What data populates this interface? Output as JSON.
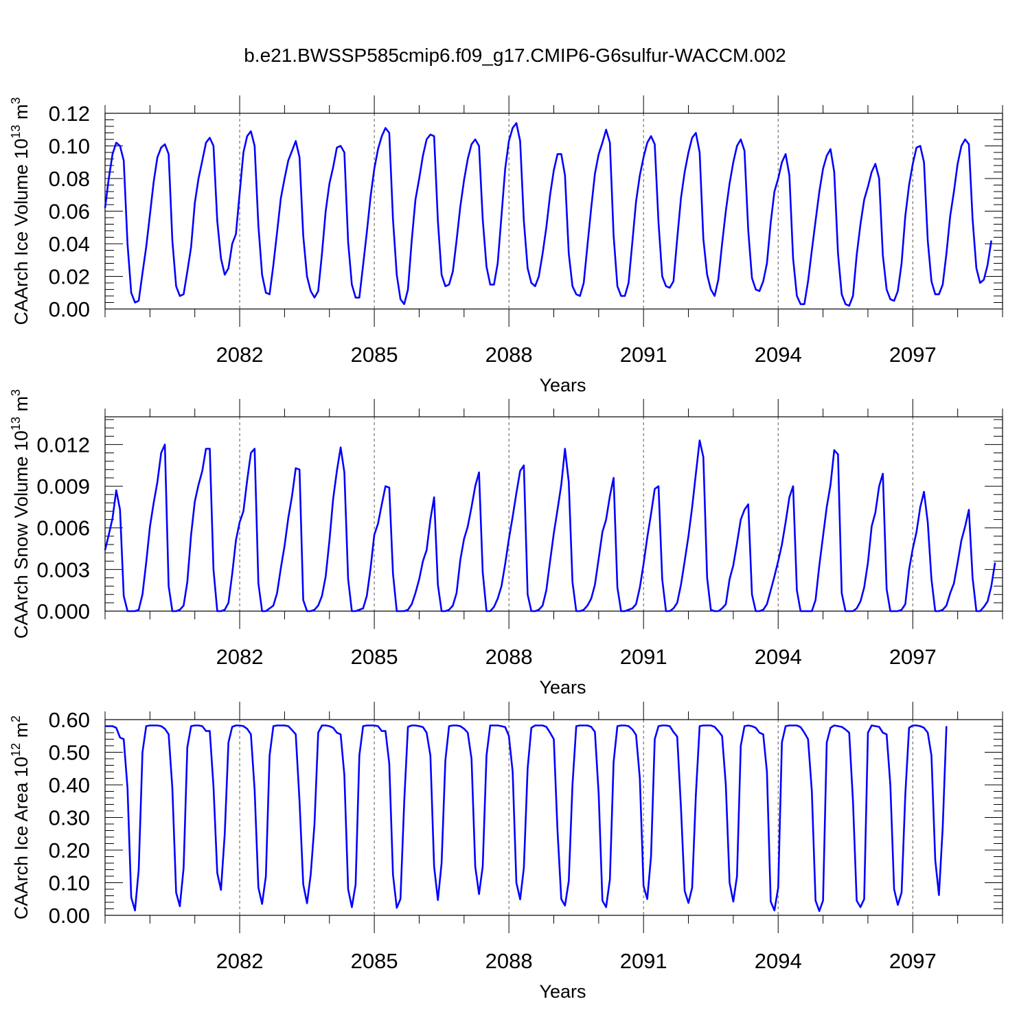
{
  "title": "b.e21.BWSSP585cmip6.f09_g17.CMIP6-G6sulfur-WACCM.002",
  "line_color": "#0000ff",
  "chart_data": [
    {
      "type": "line",
      "ylabel": "CAArch Ice Volume 10",
      "ylabel_exp": "13",
      "ylabel_unit": "m",
      "ylabel_unit_exp": "3",
      "xlabel": "Years",
      "xlim": [
        2079.0,
        2099.0
      ],
      "ylim": [
        0,
        0.12
      ],
      "yticks": [
        "0.00",
        "0.02",
        "0.04",
        "0.06",
        "0.08",
        "0.10",
        "0.12"
      ],
      "xticks": [
        "2082",
        "2085",
        "2088",
        "2091",
        "2094",
        "2097"
      ],
      "x_start": "2079-01",
      "x_step_months": 1,
      "series": [
        {
          "values": [
            0.062,
            0.08,
            0.095,
            0.102,
            0.1,
            0.091,
            0.04,
            0.01,
            0.004,
            0.005,
            0.022,
            0.038,
            0.058,
            0.078,
            0.093,
            0.099,
            0.101,
            0.095,
            0.042,
            0.014,
            0.008,
            0.009,
            0.023,
            0.038,
            0.065,
            0.08,
            0.091,
            0.102,
            0.105,
            0.1,
            0.054,
            0.031,
            0.021,
            0.025,
            0.04,
            0.046,
            0.071,
            0.096,
            0.106,
            0.109,
            0.1,
            0.051,
            0.021,
            0.01,
            0.009,
            0.027,
            0.047,
            0.068,
            0.08,
            0.091,
            0.097,
            0.103,
            0.093,
            0.045,
            0.02,
            0.011,
            0.007,
            0.011,
            0.034,
            0.06,
            0.077,
            0.087,
            0.099,
            0.1,
            0.096,
            0.041,
            0.015,
            0.007,
            0.007,
            0.027,
            0.047,
            0.069,
            0.086,
            0.098,
            0.106,
            0.111,
            0.108,
            0.055,
            0.021,
            0.006,
            0.003,
            0.012,
            0.042,
            0.067,
            0.08,
            0.094,
            0.104,
            0.107,
            0.106,
            0.054,
            0.021,
            0.014,
            0.015,
            0.023,
            0.042,
            0.063,
            0.079,
            0.092,
            0.101,
            0.104,
            0.1,
            0.055,
            0.026,
            0.015,
            0.015,
            0.028,
            0.057,
            0.086,
            0.103,
            0.111,
            0.114,
            0.103,
            0.054,
            0.025,
            0.016,
            0.014,
            0.02,
            0.034,
            0.05,
            0.07,
            0.085,
            0.095,
            0.095,
            0.082,
            0.034,
            0.014,
            0.009,
            0.008,
            0.016,
            0.039,
            0.062,
            0.083,
            0.095,
            0.102,
            0.11,
            0.102,
            0.045,
            0.014,
            0.008,
            0.008,
            0.016,
            0.041,
            0.066,
            0.082,
            0.093,
            0.102,
            0.106,
            0.101,
            0.053,
            0.02,
            0.014,
            0.013,
            0.017,
            0.043,
            0.068,
            0.084,
            0.096,
            0.105,
            0.108,
            0.096,
            0.043,
            0.021,
            0.012,
            0.008,
            0.018,
            0.04,
            0.06,
            0.077,
            0.09,
            0.1,
            0.104,
            0.097,
            0.048,
            0.019,
            0.012,
            0.011,
            0.017,
            0.028,
            0.053,
            0.072,
            0.08,
            0.09,
            0.095,
            0.082,
            0.031,
            0.008,
            0.003,
            0.003,
            0.017,
            0.036,
            0.054,
            0.072,
            0.086,
            0.094,
            0.098,
            0.084,
            0.034,
            0.009,
            0.003,
            0.002,
            0.008,
            0.033,
            0.052,
            0.067,
            0.075,
            0.084,
            0.089,
            0.08,
            0.033,
            0.012,
            0.006,
            0.005,
            0.011,
            0.028,
            0.057,
            0.076,
            0.089,
            0.099,
            0.1,
            0.09,
            0.042,
            0.017,
            0.009,
            0.009,
            0.015,
            0.034,
            0.057,
            0.072,
            0.089,
            0.1,
            0.104,
            0.101,
            0.055,
            0.025,
            0.016,
            0.018,
            0.027,
            0.042
          ]
        }
      ]
    },
    {
      "type": "line",
      "ylabel": "CAArch Snow Volume 10",
      "ylabel_exp": "13",
      "ylabel_unit": "m",
      "ylabel_unit_exp": "3",
      "xlabel": "Years",
      "xlim": [
        2079.0,
        2099.0
      ],
      "ylim": [
        0,
        0.014
      ],
      "yticks": [
        "0.000",
        "0.003",
        "0.006",
        "0.009",
        "0.012"
      ],
      "ytick_values": [
        0,
        0.003,
        0.006,
        0.009,
        0.012
      ],
      "xticks": [
        "2082",
        "2085",
        "2088",
        "2091",
        "2094",
        "2097"
      ],
      "x_start": "2079-01",
      "x_step_months": 1,
      "series": [
        {
          "values": [
            0.0044,
            0.0055,
            0.0067,
            0.0087,
            0.0073,
            0.0011,
            0.0,
            0.0,
            0.0,
            0.0001,
            0.0012,
            0.0035,
            0.0061,
            0.0078,
            0.0093,
            0.0114,
            0.012,
            0.0018,
            0.0,
            0.0,
            0.0001,
            0.0004,
            0.0021,
            0.0055,
            0.0079,
            0.0091,
            0.0101,
            0.0117,
            0.0117,
            0.003,
            0.0,
            0.0,
            0.0001,
            0.0006,
            0.0027,
            0.0051,
            0.0064,
            0.0072,
            0.0094,
            0.0114,
            0.0117,
            0.002,
            0.0,
            0.0,
            0.0002,
            0.0004,
            0.0013,
            0.0031,
            0.0047,
            0.0067,
            0.0083,
            0.0103,
            0.0102,
            0.0008,
            0.0,
            0.0,
            0.0001,
            0.0004,
            0.0011,
            0.0025,
            0.0051,
            0.0081,
            0.0101,
            0.0118,
            0.01,
            0.0023,
            0.0,
            0.0,
            0.0001,
            0.0002,
            0.0011,
            0.0031,
            0.0055,
            0.0063,
            0.0077,
            0.009,
            0.0089,
            0.0027,
            0.0,
            0.0,
            0.0,
            0.0001,
            0.0005,
            0.0013,
            0.0023,
            0.0036,
            0.0044,
            0.0066,
            0.0082,
            0.0019,
            0.0,
            0.0,
            0.0001,
            0.0004,
            0.0013,
            0.0037,
            0.0052,
            0.0061,
            0.0075,
            0.009,
            0.01,
            0.0028,
            0.0,
            0.0,
            0.0003,
            0.0009,
            0.0018,
            0.0034,
            0.0052,
            0.0068,
            0.0085,
            0.0101,
            0.0105,
            0.0012,
            0.0,
            0.0,
            0.0001,
            0.0004,
            0.0015,
            0.0036,
            0.0056,
            0.0073,
            0.0091,
            0.0117,
            0.0093,
            0.0021,
            0.0,
            0.0,
            0.0001,
            0.0004,
            0.0009,
            0.0019,
            0.0038,
            0.0057,
            0.0066,
            0.0083,
            0.0096,
            0.0017,
            0.0,
            0.0,
            0.0001,
            0.0002,
            0.0005,
            0.0017,
            0.0034,
            0.0053,
            0.007,
            0.0088,
            0.009,
            0.0023,
            0.0,
            0.0,
            0.0002,
            0.0006,
            0.0019,
            0.0036,
            0.0054,
            0.0075,
            0.0099,
            0.0123,
            0.0111,
            0.0024,
            0.0001,
            0.0,
            0.0,
            0.0002,
            0.0005,
            0.0023,
            0.0033,
            0.0049,
            0.0066,
            0.0073,
            0.0077,
            0.0012,
            0.0,
            0.0,
            0.0001,
            0.0005,
            0.0015,
            0.0025,
            0.0036,
            0.0048,
            0.0064,
            0.0082,
            0.009,
            0.0015,
            0.0,
            0.0,
            0.0,
            0.0,
            0.0008,
            0.0033,
            0.0054,
            0.0075,
            0.0091,
            0.0116,
            0.0113,
            0.0013,
            0.0,
            0.0,
            0.0,
            0.0002,
            0.0007,
            0.0017,
            0.0035,
            0.0061,
            0.0071,
            0.009,
            0.0099,
            0.0016,
            0.0,
            0.0,
            0.0,
            0.0001,
            0.0005,
            0.003,
            0.0045,
            0.0057,
            0.0075,
            0.0086,
            0.0064,
            0.0023,
            0.0,
            0.0,
            0.0001,
            0.0004,
            0.0013,
            0.002,
            0.0035,
            0.0051,
            0.0061,
            0.0073,
            0.0024,
            0.0,
            0.0,
            0.0003,
            0.0007,
            0.0018,
            0.0035
          ]
        }
      ]
    },
    {
      "type": "line",
      "ylabel": "CAArch Ice Area 10",
      "ylabel_exp": "12",
      "ylabel_unit": "m",
      "ylabel_unit_exp": "2",
      "xlabel": "Years",
      "xlim": [
        2079.0,
        2099.0
      ],
      "ylim": [
        0,
        0.6
      ],
      "yticks": [
        "0.00",
        "0.10",
        "0.20",
        "0.30",
        "0.40",
        "0.50",
        "0.60"
      ],
      "xticks": [
        "2082",
        "2085",
        "2088",
        "2091",
        "2094",
        "2097"
      ],
      "x_start": "2079-01",
      "x_step_months": 1,
      "series": [
        {
          "values": [
            0.58,
            0.58,
            0.58,
            0.575,
            0.545,
            0.54,
            0.39,
            0.055,
            0.015,
            0.14,
            0.5,
            0.58,
            0.582,
            0.582,
            0.582,
            0.58,
            0.572,
            0.555,
            0.39,
            0.07,
            0.028,
            0.145,
            0.515,
            0.58,
            0.582,
            0.582,
            0.58,
            0.565,
            0.565,
            0.395,
            0.13,
            0.078,
            0.25,
            0.53,
            0.578,
            0.582,
            0.582,
            0.58,
            0.572,
            0.555,
            0.385,
            0.085,
            0.035,
            0.12,
            0.49,
            0.58,
            0.582,
            0.582,
            0.582,
            0.58,
            0.568,
            0.555,
            0.35,
            0.095,
            0.037,
            0.125,
            0.28,
            0.56,
            0.582,
            0.582,
            0.58,
            0.575,
            0.56,
            0.555,
            0.43,
            0.08,
            0.025,
            0.095,
            0.49,
            0.58,
            0.582,
            0.582,
            0.582,
            0.58,
            0.565,
            0.565,
            0.465,
            0.125,
            0.023,
            0.05,
            0.35,
            0.578,
            0.582,
            0.582,
            0.58,
            0.577,
            0.56,
            0.49,
            0.15,
            0.047,
            0.16,
            0.475,
            0.58,
            0.582,
            0.582,
            0.58,
            0.572,
            0.56,
            0.48,
            0.15,
            0.065,
            0.15,
            0.49,
            0.582,
            0.582,
            0.582,
            0.58,
            0.577,
            0.55,
            0.44,
            0.1,
            0.049,
            0.145,
            0.45,
            0.575,
            0.582,
            0.582,
            0.582,
            0.578,
            0.56,
            0.54,
            0.26,
            0.05,
            0.03,
            0.105,
            0.4,
            0.58,
            0.582,
            0.582,
            0.582,
            0.578,
            0.562,
            0.37,
            0.045,
            0.025,
            0.11,
            0.47,
            0.58,
            0.582,
            0.582,
            0.58,
            0.57,
            0.553,
            0.42,
            0.09,
            0.05,
            0.18,
            0.54,
            0.58,
            0.582,
            0.582,
            0.58,
            0.562,
            0.548,
            0.33,
            0.075,
            0.038,
            0.085,
            0.37,
            0.58,
            0.582,
            0.582,
            0.582,
            0.578,
            0.565,
            0.55,
            0.4,
            0.1,
            0.042,
            0.12,
            0.52,
            0.58,
            0.582,
            0.58,
            0.575,
            0.56,
            0.555,
            0.44,
            0.042,
            0.015,
            0.085,
            0.53,
            0.58,
            0.582,
            0.582,
            0.582,
            0.577,
            0.56,
            0.54,
            0.38,
            0.045,
            0.013,
            0.045,
            0.53,
            0.575,
            0.582,
            0.58,
            0.578,
            0.57,
            0.56,
            0.35,
            0.045,
            0.025,
            0.05,
            0.56,
            0.582,
            0.58,
            0.578,
            0.56,
            0.555,
            0.4,
            0.08,
            0.032,
            0.07,
            0.37,
            0.575,
            0.582,
            0.582,
            0.58,
            0.575,
            0.56,
            0.49,
            0.17,
            0.062,
            0.27,
            0.58
          ]
        }
      ]
    }
  ]
}
